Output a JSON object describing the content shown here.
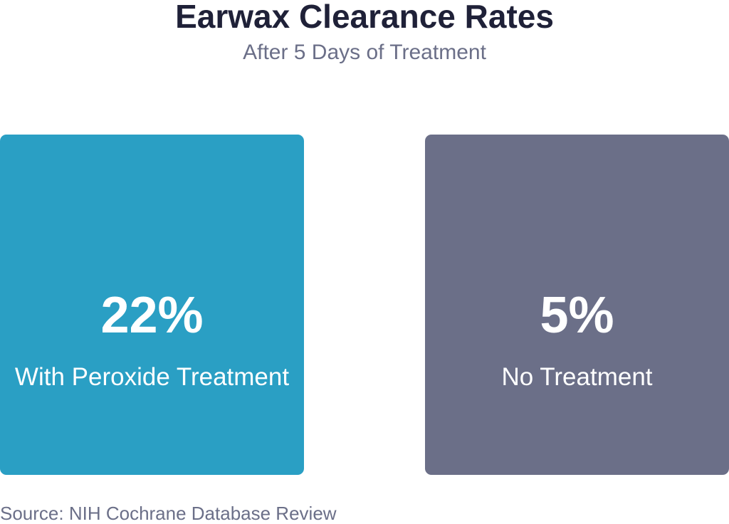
{
  "title": "Earwax Clearance Rates",
  "subtitle": "After 5 Days of Treatment",
  "source": "Source: NIH Cochrane Database Review",
  "chart_data": {
    "type": "bar",
    "title": "Earwax Clearance Rates",
    "subtitle": "After 5 Days of Treatment",
    "categories": [
      "With Peroxide Treatment",
      "No Treatment"
    ],
    "values": [
      22,
      5
    ],
    "unit": "%",
    "display_values": [
      "22%",
      "5%"
    ],
    "colors": [
      "#2a9fc4",
      "#6b6f88"
    ]
  },
  "cards": [
    {
      "value": "22%",
      "label": "With Peroxide Treatment",
      "color": "#2a9fc4"
    },
    {
      "value": "5%",
      "label": "No Treatment",
      "color": "#6b6f88"
    }
  ]
}
